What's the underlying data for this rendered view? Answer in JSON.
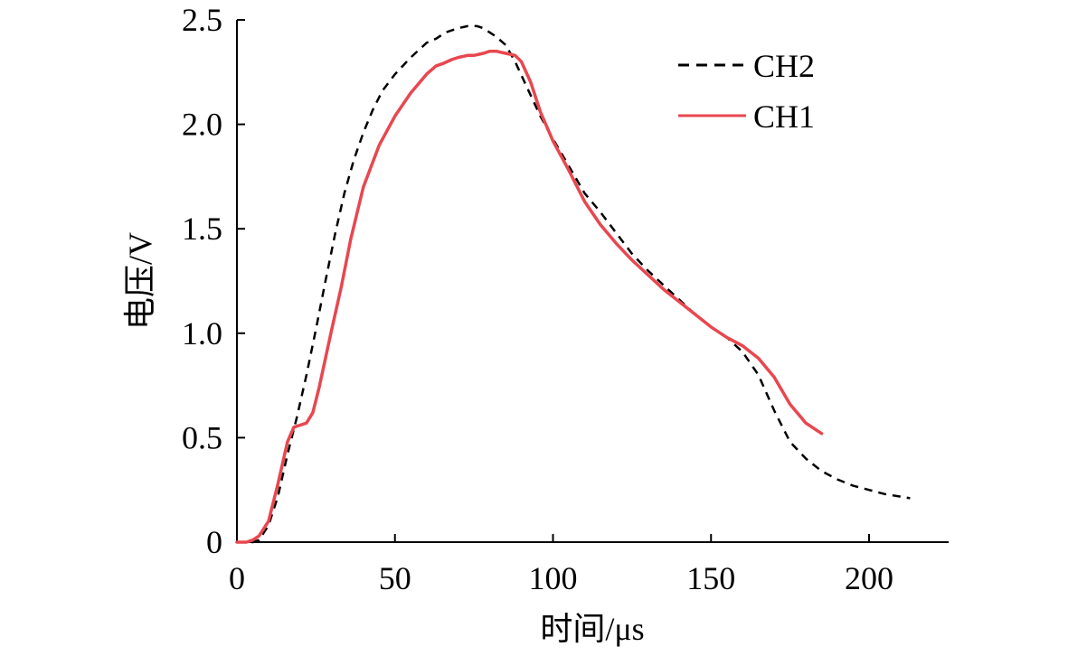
{
  "chart_data": {
    "type": "line",
    "title": "",
    "xlabel": "时间/μs",
    "ylabel": "电压/V",
    "xlim": [
      0,
      225
    ],
    "ylim": [
      0,
      2.5
    ],
    "x_ticks": [
      0,
      50,
      100,
      150,
      200
    ],
    "x_tick_labels": [
      "0",
      "50",
      "100",
      "150",
      "200"
    ],
    "y_ticks": [
      0,
      0.5,
      1.0,
      1.5,
      2.0,
      2.5
    ],
    "y_tick_labels": [
      "0",
      "0.5",
      "1.0",
      "1.5",
      "2.0",
      "2.5"
    ],
    "grid": false,
    "legend_position": "top-right",
    "series": [
      {
        "name": "CH2",
        "color": "#000000",
        "style": "dashed",
        "x": [
          0,
          5,
          7,
          10,
          13,
          16,
          19,
          22,
          25,
          28,
          31,
          34,
          37,
          40,
          43,
          46,
          50,
          55,
          60,
          63,
          66,
          70,
          73,
          76,
          78,
          80,
          82,
          85,
          88,
          92,
          96,
          100,
          105,
          110,
          115,
          120,
          125,
          130,
          135,
          140,
          145,
          150,
          155,
          160,
          165,
          170,
          175,
          180,
          185,
          190,
          195,
          200,
          205,
          213
        ],
        "y": [
          0,
          0,
          0.01,
          0.08,
          0.22,
          0.42,
          0.6,
          0.8,
          1.02,
          1.25,
          1.47,
          1.67,
          1.83,
          1.96,
          2.07,
          2.16,
          2.24,
          2.32,
          2.39,
          2.41,
          2.44,
          2.46,
          2.47,
          2.47,
          2.46,
          2.44,
          2.42,
          2.38,
          2.3,
          2.17,
          2.04,
          1.93,
          1.8,
          1.67,
          1.58,
          1.48,
          1.38,
          1.3,
          1.23,
          1.16,
          1.09,
          1.03,
          0.98,
          0.91,
          0.8,
          0.63,
          0.48,
          0.4,
          0.34,
          0.3,
          0.27,
          0.25,
          0.23,
          0.21
        ]
      },
      {
        "name": "CH1",
        "color": "#e8474f",
        "style": "solid",
        "x": [
          0,
          3,
          5,
          7,
          10,
          13,
          16,
          18,
          20,
          22,
          24,
          26,
          28,
          30,
          33,
          36,
          40,
          45,
          50,
          55,
          60,
          63,
          65,
          68,
          70,
          73,
          75,
          78,
          80,
          82,
          85,
          88,
          90,
          93,
          96,
          100,
          105,
          110,
          115,
          120,
          125,
          130,
          135,
          140,
          145,
          150,
          155,
          160,
          165,
          170,
          175,
          180,
          183,
          185
        ],
        "y": [
          0,
          0,
          0.01,
          0.03,
          0.1,
          0.28,
          0.48,
          0.55,
          0.56,
          0.57,
          0.62,
          0.74,
          0.88,
          1.02,
          1.22,
          1.45,
          1.7,
          1.9,
          2.04,
          2.15,
          2.24,
          2.28,
          2.29,
          2.31,
          2.32,
          2.33,
          2.33,
          2.34,
          2.35,
          2.35,
          2.34,
          2.33,
          2.3,
          2.2,
          2.06,
          1.92,
          1.78,
          1.63,
          1.52,
          1.43,
          1.35,
          1.28,
          1.21,
          1.15,
          1.09,
          1.03,
          0.98,
          0.94,
          0.88,
          0.79,
          0.66,
          0.57,
          0.54,
          0.52
        ]
      }
    ]
  }
}
